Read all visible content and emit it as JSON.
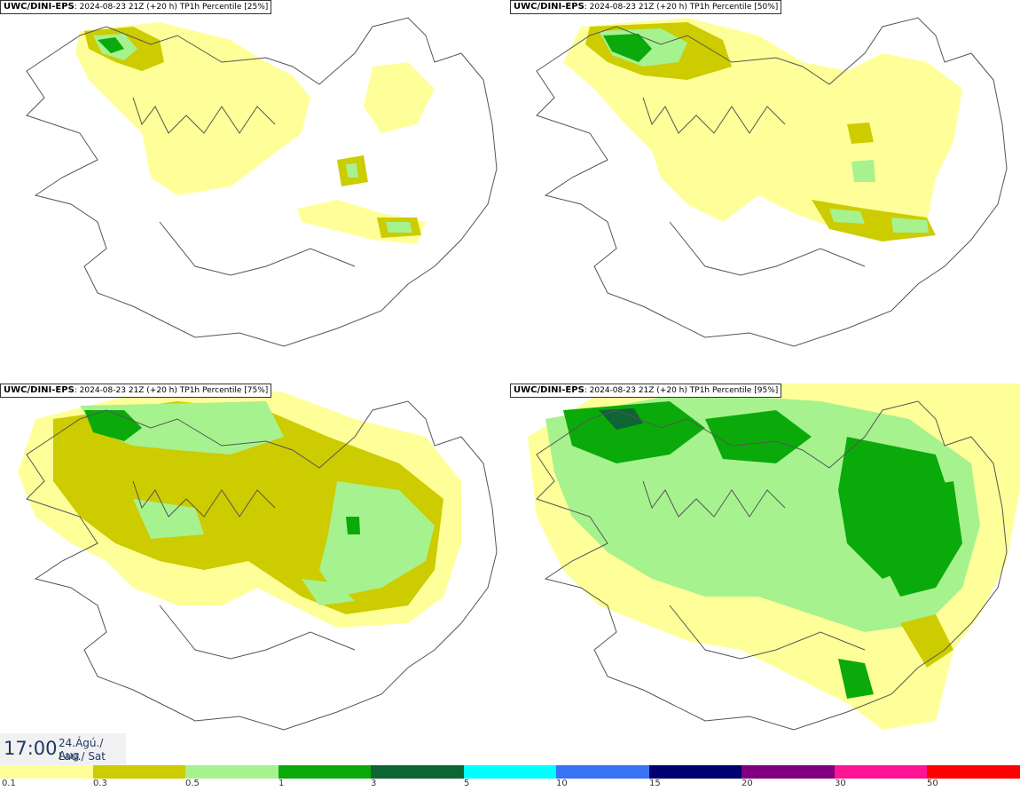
{
  "panels": [
    {
      "model": "UWC/DINI-EPS",
      "run": ": 2024-08-23 21Z (+20 h)",
      "field": "TP1h Percentile [25%]"
    },
    {
      "model": "UWC/DINI-EPS",
      "run": ": 2024-08-23 21Z (+20 h)",
      "field": "TP1h Percentile [50%]"
    },
    {
      "model": "UWC/DINI-EPS",
      "run": ": 2024-08-23 21Z (+20 h)",
      "field": "TP1h Percentile [75%]"
    },
    {
      "model": "UWC/DINI-EPS",
      "run": ": 2024-08-23 21Z (+20 h)",
      "field": "TP1h Percentile [95%]"
    }
  ],
  "valid_time": {
    "time": "17:00",
    "date_line1": "24.Ágú./ Aug",
    "date_line2": "Lau./ Sat"
  },
  "legend": {
    "colors": [
      "#ffff99",
      "#cccc00",
      "#a6f28f",
      "#0aaa0a",
      "#0f6434",
      "#00ffff",
      "#3a73f5",
      "#000070",
      "#800080",
      "#ff1493",
      "#ff0000"
    ],
    "ticks": [
      "0.1",
      "0.3",
      "0.5",
      "1",
      "3",
      "5",
      "10",
      "15",
      "20",
      "30",
      "50"
    ]
  }
}
